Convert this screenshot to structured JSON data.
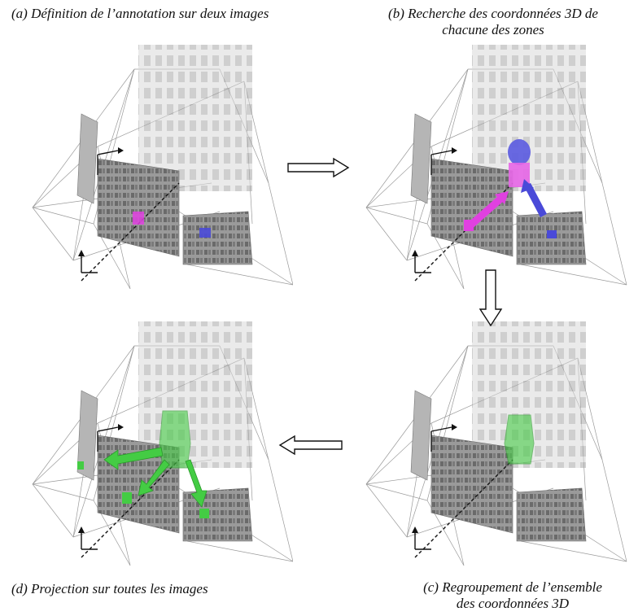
{
  "captions": {
    "a": "(a) Définition de l’annotation sur deux images",
    "b_line1": "(b) Recherche des coordonnées 3D de",
    "b_line2": "chacune des zones",
    "c_line1": "(c) Regroupement de l’ensemble",
    "c_line2": "des coordonnées 3D",
    "d": "(d) Projection sur toutes les images"
  },
  "colors": {
    "annotation_magenta": "#e040e0",
    "annotation_blue": "#4a4ad8",
    "cluster_green": "#44cc44",
    "frustum_lines": "#888888",
    "facade": "#cfcfcf"
  },
  "panels": [
    {
      "id": "a",
      "annotations": [
        "magenta-zone",
        "blue-zone"
      ]
    },
    {
      "id": "b",
      "annotations": [
        "magenta-3d-arrow",
        "blue-3d-arrow",
        "3d-regions"
      ]
    },
    {
      "id": "c",
      "annotations": [
        "green-3d-region"
      ]
    },
    {
      "id": "d",
      "annotations": [
        "green-projection-arrows",
        "green-zones"
      ]
    }
  ],
  "flow": [
    "right-arrow",
    "down-arrow",
    "left-arrow"
  ]
}
